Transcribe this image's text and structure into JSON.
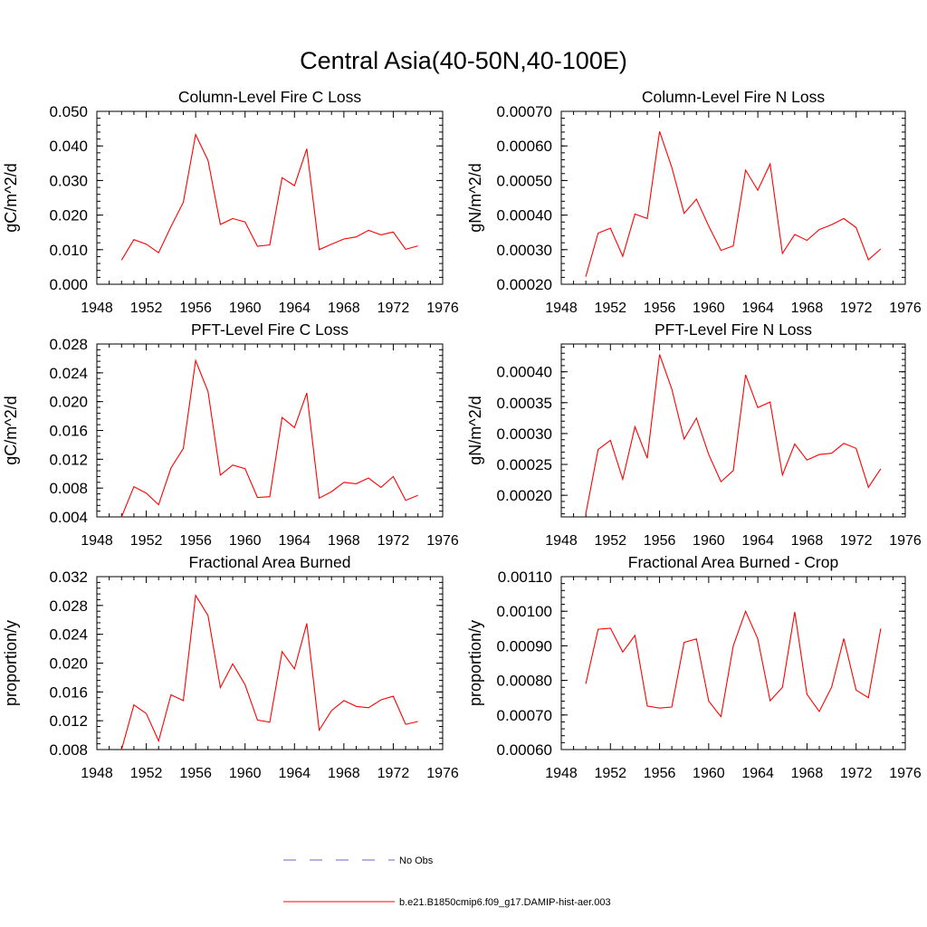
{
  "figure": {
    "title": "Central Asia(40-50N,40-100E)",
    "legend": [
      {
        "label": "No Obs",
        "color": "#6666cc",
        "style": "dashed"
      },
      {
        "label": "b.e21.B1850cmip6.f09_g17.DAMIP-hist-aer.003",
        "color": "#ff0000",
        "style": "solid"
      }
    ]
  },
  "chart_data": [
    {
      "type": "line",
      "title": "Column-Level Fire C Loss",
      "ylabel": "gC/m^2/d",
      "xlim": [
        1948,
        1976
      ],
      "xticks": [
        1948,
        1952,
        1956,
        1960,
        1964,
        1968,
        1972,
        1976
      ],
      "ylim": [
        0.0,
        0.05
      ],
      "yticks": [
        "0.000",
        "0.010",
        "0.020",
        "0.030",
        "0.040",
        "0.050"
      ],
      "color": "#ff0000",
      "x": [
        1950,
        1951,
        1952,
        1953,
        1954,
        1955,
        1956,
        1957,
        1958,
        1959,
        1960,
        1961,
        1962,
        1963,
        1964,
        1965,
        1966,
        1967,
        1968,
        1969,
        1970,
        1971,
        1972,
        1973,
        1974
      ],
      "y": [
        0.007,
        0.0129,
        0.0116,
        0.0091,
        0.0167,
        0.0237,
        0.0433,
        0.0358,
        0.0173,
        0.019,
        0.018,
        0.011,
        0.0114,
        0.0308,
        0.0285,
        0.0392,
        0.01,
        0.0116,
        0.0131,
        0.0137,
        0.0156,
        0.0143,
        0.0151,
        0.0101,
        0.0111
      ]
    },
    {
      "type": "line",
      "title": "Column-Level Fire N Loss",
      "ylabel": "gN/m^2/d",
      "xlim": [
        1948,
        1976
      ],
      "xticks": [
        1948,
        1952,
        1956,
        1960,
        1964,
        1968,
        1972,
        1976
      ],
      "ylim": [
        0.0002,
        0.0007
      ],
      "yticks": [
        "0.00020",
        "0.00030",
        "0.00040",
        "0.00050",
        "0.00060",
        "0.00070"
      ],
      "color": "#ff0000",
      "x": [
        1950,
        1951,
        1952,
        1953,
        1954,
        1955,
        1956,
        1957,
        1958,
        1959,
        1960,
        1961,
        1962,
        1963,
        1964,
        1965,
        1966,
        1967,
        1968,
        1969,
        1970,
        1971,
        1972,
        1973,
        1974
      ],
      "y": [
        0.000222,
        0.000348,
        0.000362,
        0.000281,
        0.000403,
        0.00039,
        0.000642,
        0.000538,
        0.000405,
        0.000446,
        0.000368,
        0.000298,
        0.000311,
        0.00053,
        0.000472,
        0.000548,
        0.000289,
        0.000344,
        0.000327,
        0.000358,
        0.000372,
        0.00039,
        0.000364,
        0.000271,
        0.000302
      ]
    },
    {
      "type": "line",
      "title": "PFT-Level Fire C Loss",
      "ylabel": "gC/m^2/d",
      "xlim": [
        1948,
        1976
      ],
      "xticks": [
        1948,
        1952,
        1956,
        1960,
        1964,
        1968,
        1972,
        1976
      ],
      "ylim": [
        0.004,
        0.028
      ],
      "yticks": [
        "0.004",
        "0.008",
        "0.012",
        "0.016",
        "0.020",
        "0.024",
        "0.028"
      ],
      "color": "#ff0000",
      "x": [
        1950,
        1951,
        1952,
        1953,
        1954,
        1955,
        1956,
        1957,
        1958,
        1959,
        1960,
        1961,
        1962,
        1963,
        1964,
        1965,
        1966,
        1967,
        1968,
        1969,
        1970,
        1971,
        1972,
        1973,
        1974
      ],
      "y": [
        0.004,
        0.0082,
        0.0073,
        0.0057,
        0.0108,
        0.0135,
        0.0257,
        0.0214,
        0.0098,
        0.0112,
        0.0107,
        0.0067,
        0.0068,
        0.0178,
        0.0164,
        0.0212,
        0.0066,
        0.0075,
        0.0088,
        0.0086,
        0.0094,
        0.0081,
        0.0096,
        0.0063,
        0.007
      ]
    },
    {
      "type": "line",
      "title": "PFT-Level Fire N Loss",
      "ylabel": "gN/m^2/d",
      "xlim": [
        1948,
        1976
      ],
      "xticks": [
        1948,
        1952,
        1956,
        1960,
        1964,
        1968,
        1972,
        1976
      ],
      "ylim": [
        0.000165,
        0.000445
      ],
      "yticks": [
        "0.00020",
        "0.00025",
        "0.00030",
        "0.00035",
        "0.00040"
      ],
      "color": "#ff0000",
      "x": [
        1950,
        1951,
        1952,
        1953,
        1954,
        1955,
        1956,
        1957,
        1958,
        1959,
        1960,
        1961,
        1962,
        1963,
        1964,
        1965,
        1966,
        1967,
        1968,
        1969,
        1970,
        1971,
        1972,
        1973,
        1974
      ],
      "y": [
        0.00017,
        0.000274,
        0.000289,
        0.000226,
        0.000311,
        0.00026,
        0.000428,
        0.000372,
        0.000291,
        0.000325,
        0.000266,
        0.000222,
        0.00024,
        0.000395,
        0.000342,
        0.000351,
        0.000233,
        0.000283,
        0.000257,
        0.000266,
        0.000268,
        0.000284,
        0.000276,
        0.000213,
        0.000243
      ]
    },
    {
      "type": "line",
      "title": "Fractional Area Burned",
      "ylabel": "proportion/y",
      "xlim": [
        1948,
        1976
      ],
      "xticks": [
        1948,
        1952,
        1956,
        1960,
        1964,
        1968,
        1972,
        1976
      ],
      "ylim": [
        0.008,
        0.032
      ],
      "yticks": [
        "0.008",
        "0.012",
        "0.016",
        "0.020",
        "0.024",
        "0.028",
        "0.032"
      ],
      "color": "#ff0000",
      "x": [
        1950,
        1951,
        1952,
        1953,
        1954,
        1955,
        1956,
        1957,
        1958,
        1959,
        1960,
        1961,
        1962,
        1963,
        1964,
        1965,
        1966,
        1967,
        1968,
        1969,
        1970,
        1971,
        1972,
        1973,
        1974
      ],
      "y": [
        0.008,
        0.0142,
        0.013,
        0.0092,
        0.0156,
        0.0148,
        0.0294,
        0.0266,
        0.0166,
        0.0199,
        0.017,
        0.0121,
        0.0118,
        0.0216,
        0.0192,
        0.0255,
        0.0107,
        0.0134,
        0.0148,
        0.014,
        0.0138,
        0.0149,
        0.0154,
        0.0115,
        0.0119
      ]
    },
    {
      "type": "line",
      "title": "Fractional Area Burned - Crop",
      "ylabel": "proportion/y",
      "xlim": [
        1948,
        1976
      ],
      "xticks": [
        1948,
        1952,
        1956,
        1960,
        1964,
        1968,
        1972,
        1976
      ],
      "ylim": [
        0.0006,
        0.0011
      ],
      "yticks": [
        "0.00060",
        "0.00070",
        "0.00080",
        "0.00090",
        "0.00100",
        "0.00110"
      ],
      "color": "#ff0000",
      "x": [
        1950,
        1951,
        1952,
        1953,
        1954,
        1955,
        1956,
        1957,
        1958,
        1959,
        1960,
        1961,
        1962,
        1963,
        1964,
        1965,
        1966,
        1967,
        1968,
        1969,
        1970,
        1971,
        1972,
        1973,
        1974
      ],
      "y": [
        0.00079,
        0.000948,
        0.000951,
        0.000882,
        0.00093,
        0.000726,
        0.00072,
        0.000723,
        0.00091,
        0.00092,
        0.00074,
        0.000695,
        0.0009,
        0.001,
        0.00092,
        0.000741,
        0.00078,
        0.000998,
        0.00076,
        0.00071,
        0.00078,
        0.000921,
        0.000772,
        0.00075,
        0.00095
      ]
    }
  ]
}
